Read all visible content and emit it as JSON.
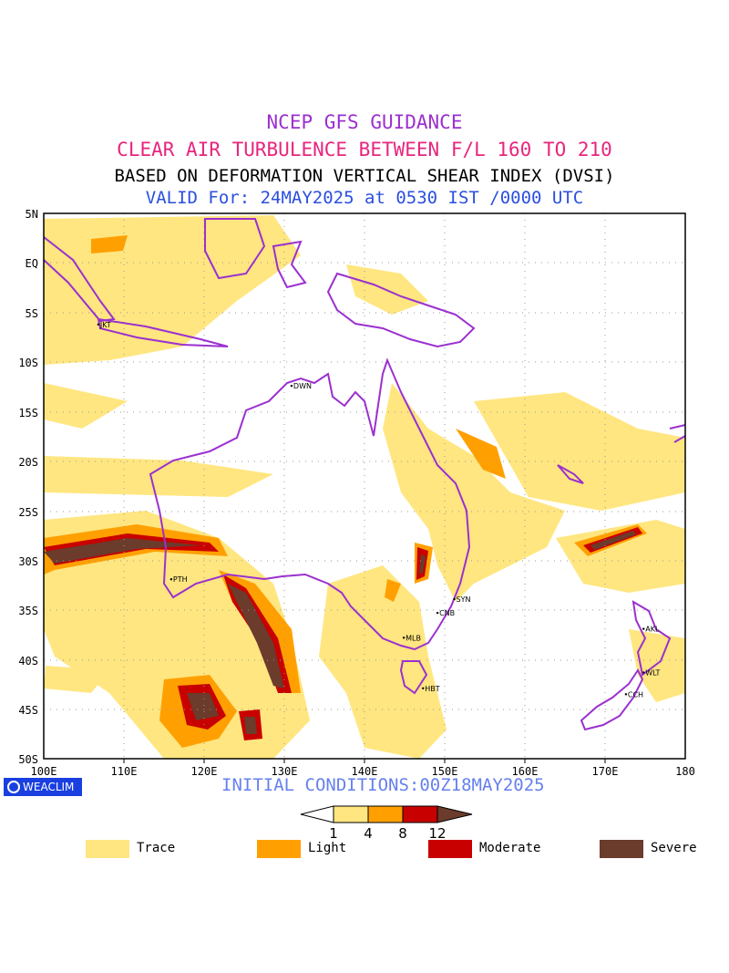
{
  "titles": {
    "line1": "NCEP GFS GUIDANCE",
    "line2": "CLEAR AIR TURBULENCE BETWEEN F/L 160 TO 210",
    "line3": "BASED ON DEFORMATION VERTICAL SHEAR INDEX (DVSI)",
    "line4": "VALID For: 24MAY2025 at 0530 IST /0000 UTC"
  },
  "map": {
    "lon_labels": [
      "100E",
      "110E",
      "120E",
      "130E",
      "140E",
      "150E",
      "160E",
      "170E",
      "180"
    ],
    "lat_labels": [
      "5N",
      "EQ",
      "5S",
      "10S",
      "15S",
      "20S",
      "25S",
      "30S",
      "35S",
      "40S",
      "45S",
      "50S"
    ],
    "stations": [
      {
        "code": "JKT",
        "lon": 106.8,
        "lat": -6.2
      },
      {
        "code": "DWN",
        "lon": 130.9,
        "lat": -12.4
      },
      {
        "code": "PTH",
        "lon": 115.9,
        "lat": -31.9
      },
      {
        "code": "SYN",
        "lon": 151.2,
        "lat": -33.9
      },
      {
        "code": "CNB",
        "lon": 149.1,
        "lat": -35.3
      },
      {
        "code": "MLB",
        "lon": 144.9,
        "lat": -37.8
      },
      {
        "code": "HBT",
        "lon": 147.3,
        "lat": -42.9
      },
      {
        "code": "AKL",
        "lon": 174.8,
        "lat": -36.9
      },
      {
        "code": "WLT",
        "lon": 174.8,
        "lat": -41.3
      },
      {
        "code": "CCH",
        "lon": 172.6,
        "lat": -43.5
      }
    ]
  },
  "initial_conditions": "INITIAL CONDITIONS:00Z18MAY2025",
  "badge": "WEACLIM",
  "colorbar": {
    "ticks": [
      "1",
      "4",
      "8",
      "12"
    ],
    "colors": [
      "#ffe680",
      "#ffa000",
      "#c80000",
      "#6b3b2b"
    ]
  },
  "legend": [
    {
      "label": "Trace",
      "color": "#ffe680"
    },
    {
      "label": "Light",
      "color": "#ffa000"
    },
    {
      "label": "Moderate",
      "color": "#c80000"
    },
    {
      "label": "Severe",
      "color": "#6b3b2b"
    }
  ],
  "colors": {
    "coastline": "#9b30d0",
    "trace": "#ffe680",
    "light": "#ffa000",
    "moderate": "#c80000",
    "severe": "#6b3b2b"
  }
}
